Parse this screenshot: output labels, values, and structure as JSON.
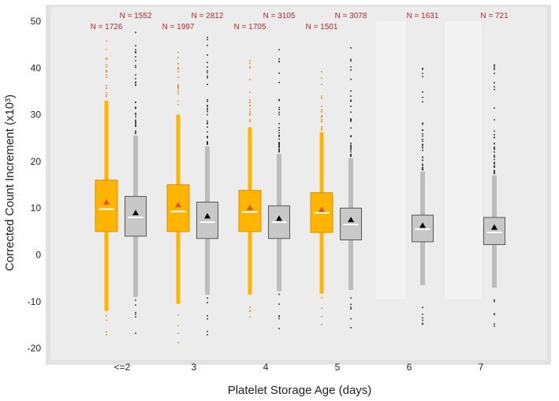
{
  "chart_data": {
    "type": "box",
    "xlabel": "Platelet Storage Age (days)",
    "ylabel": "Corrected Count Increment (x10³)",
    "ylim": [
      -22,
      52
    ],
    "yticks": [
      -20,
      -10,
      0,
      10,
      20,
      30,
      40,
      50
    ],
    "categories": [
      "<=2",
      "3",
      "4",
      "5",
      "6",
      "7"
    ],
    "grid": false,
    "colors": {
      "orange": "#FFB400",
      "orange_edge": "#d99000",
      "gray": "#c8c8c8",
      "gray_edge": "#555555",
      "whisker_orange": "#FFB400",
      "whisker_gray": "#bdbdbd",
      "mean_orange": "#e0511a",
      "mean_gray": "#000000",
      "n_label": "#b22a2a",
      "panel": "#e9e9e9"
    },
    "series": [
      {
        "color": "orange",
        "groups": [
          {
            "category": "<=2",
            "n_label": "N = 1726",
            "whisker_low": -12,
            "q1": 5,
            "median": 9.8,
            "q3": 16,
            "whisker_high": 33,
            "mean": 11.2
          },
          {
            "category": "3",
            "n_label": "N = 1997",
            "whisker_low": -10.5,
            "q1": 5,
            "median": 9.3,
            "q3": 15,
            "whisker_high": 30,
            "mean": 10.6
          },
          {
            "category": "4",
            "n_label": "N = 1705",
            "whisker_low": -8.5,
            "q1": 5,
            "median": 9.2,
            "q3": 13.8,
            "whisker_high": 27.3,
            "mean": 10
          },
          {
            "category": "5",
            "n_label": "N = 1501",
            "whisker_low": -8.3,
            "q1": 4.8,
            "median": 9,
            "q3": 13.3,
            "whisker_high": 26.3,
            "mean": 9.6
          }
        ]
      },
      {
        "color": "gray",
        "groups": [
          {
            "category": "<=2",
            "n_label": "N = 1552",
            "whisker_low": -9,
            "q1": 4,
            "median": 8,
            "q3": 12.5,
            "whisker_high": 25.5,
            "mean": 8.9
          },
          {
            "category": "3",
            "n_label": "N = 2812",
            "whisker_low": -8.5,
            "q1": 3.5,
            "median": 7,
            "q3": 11.3,
            "whisker_high": 23.2,
            "mean": 8.2
          },
          {
            "category": "4",
            "n_label": "N = 3105",
            "whisker_low": -7.8,
            "q1": 3.5,
            "median": 7,
            "q3": 10.5,
            "whisker_high": 21.6,
            "mean": 7.7
          },
          {
            "category": "5",
            "n_label": "N = 3078",
            "whisker_low": -7.5,
            "q1": 3.2,
            "median": 6.5,
            "q3": 10,
            "whisker_high": 20.7,
            "mean": 7.4
          },
          {
            "category": "6",
            "n_label": "N = 1631",
            "whisker_low": -6.5,
            "q1": 2.8,
            "median": 5.5,
            "q3": 8.5,
            "whisker_high": 17.8,
            "mean": 6.2
          },
          {
            "category": "7",
            "n_label": "N = 721",
            "whisker_low": -7,
            "q1": 2.2,
            "median": 4.8,
            "q3": 8,
            "whisker_high": 17,
            "mean": 5.8
          }
        ]
      }
    ]
  }
}
